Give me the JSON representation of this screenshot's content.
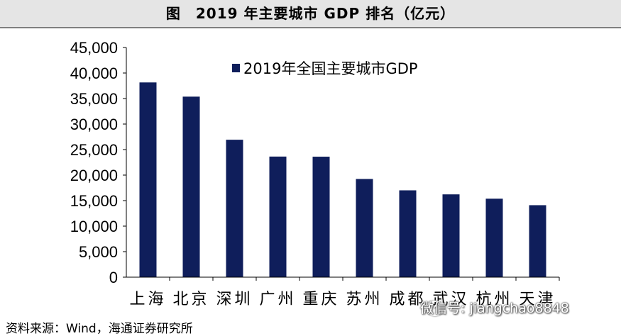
{
  "title": "图　2019 年主要城市 GDP 排名（亿元）",
  "source": "资料来源：Wind，海通证券研究所",
  "watermark": "微信号: jiangchao8848",
  "chart_data": {
    "type": "bar",
    "categories": [
      "上海",
      "北京",
      "深圳",
      "广州",
      "重庆",
      "苏州",
      "成都",
      "武汉",
      "杭州",
      "天津"
    ],
    "series": [
      {
        "name": "2019年全国主要城市GDP",
        "values": [
          38155,
          35371,
          26927,
          23629,
          23606,
          19236,
          17013,
          16223,
          15373,
          14104
        ],
        "color": "#0f1e5b"
      }
    ],
    "ylim": [
      0,
      45000
    ],
    "yticks": [
      "0",
      "5,000",
      "10,000",
      "15,000",
      "20,000",
      "25,000",
      "30,000",
      "35,000",
      "40,000",
      "45,000"
    ],
    "legend_position": "top",
    "grid": false
  }
}
